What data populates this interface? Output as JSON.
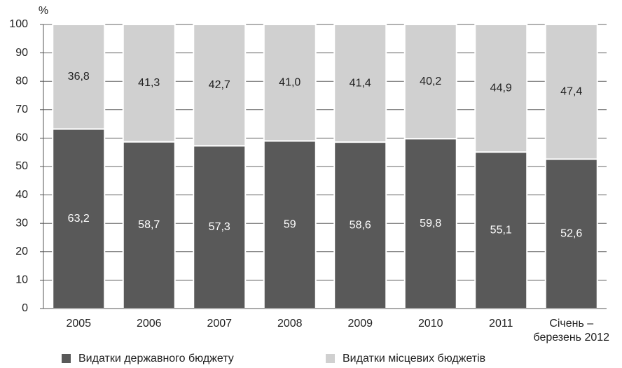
{
  "chart_data": {
    "type": "stacked_bar",
    "y_label": "%",
    "categories": [
      "2005",
      "2006",
      "2007",
      "2008",
      "2009",
      "2010",
      "2011",
      "Січень –\nберезень 2012"
    ],
    "ylim": [
      0,
      100
    ],
    "yticks": [
      0,
      10,
      20,
      30,
      40,
      50,
      60,
      70,
      80,
      90,
      100
    ],
    "grid": true,
    "legend": "bottom",
    "series": [
      {
        "name": "Видатки державного бюджету",
        "color": "#595959",
        "values": [
          63.2,
          58.7,
          57.3,
          59,
          58.6,
          59.8,
          55.1,
          52.6
        ],
        "value_labels": [
          "63,2",
          "58,7",
          "57,3",
          "59",
          "58,6",
          "59,8",
          "55,1",
          "52,6"
        ]
      },
      {
        "name": "Видатки місцевих бюджетів",
        "color": "#d0d0d0",
        "values": [
          36.8,
          41.3,
          42.7,
          41.0,
          41.4,
          40.2,
          44.9,
          47.4
        ],
        "value_labels": [
          "36,8",
          "41,3",
          "42,7",
          "41,0",
          "41,4",
          "40,2",
          "44,9",
          "47,4"
        ]
      }
    ]
  }
}
